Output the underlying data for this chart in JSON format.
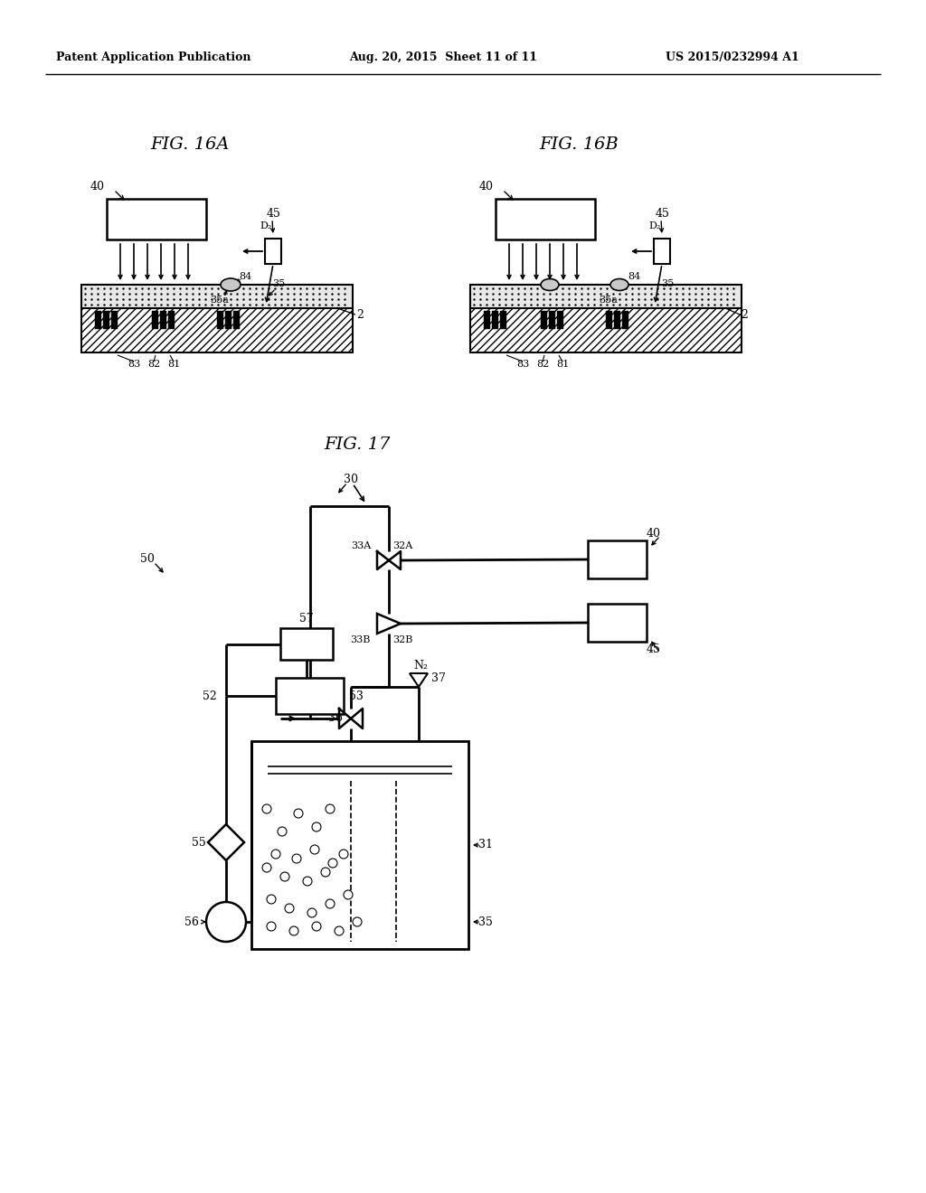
{
  "header_left": "Patent Application Publication",
  "header_center": "Aug. 20, 2015  Sheet 11 of 11",
  "header_right": "US 2015/0232994 A1",
  "fig16a_title": "FIG. 16A",
  "fig16b_title": "FIG. 16B",
  "fig17_title": "FIG. 17",
  "bg_color": "#ffffff",
  "line_color": "#000000"
}
